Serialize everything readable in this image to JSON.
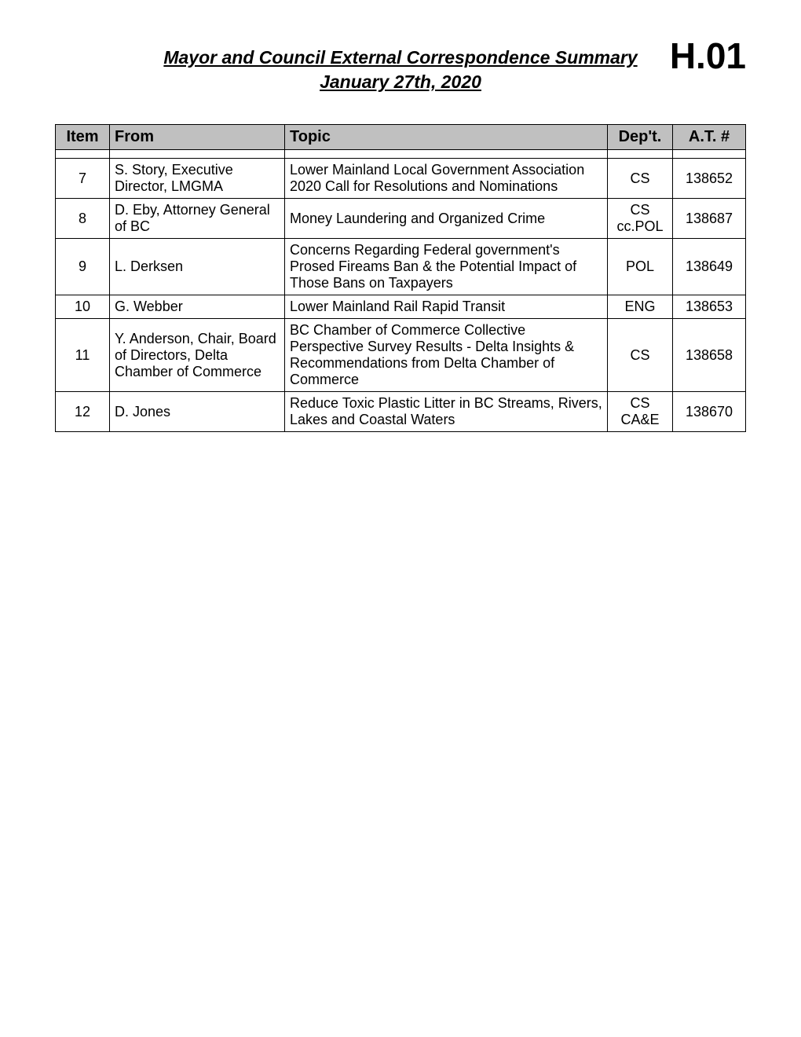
{
  "header": {
    "title": "Mayor and Council External Correspondence Summary",
    "date": "January 27th, 2020",
    "doc_code": "H.01"
  },
  "table": {
    "columns": [
      "Item",
      "From",
      "Topic",
      "Dep't.",
      "A.T. #"
    ],
    "rows": [
      {
        "item": "7",
        "from": "S. Story, Executive Director, LMGMA",
        "topic": "Lower Mainland Local Government Association 2020 Call for Resolutions and Nominations",
        "dept": "CS",
        "at": "138652"
      },
      {
        "item": "8",
        "from": "D. Eby, Attorney General of BC",
        "topic": "Money Laundering and Organized Crime",
        "dept": "CS cc.POL",
        "at": "138687"
      },
      {
        "item": "9",
        "from": "L. Derksen",
        "topic": "Concerns Regarding Federal government's Prosed Fireams Ban & the Potential Impact of Those Bans on Taxpayers",
        "dept": "POL",
        "at": "138649"
      },
      {
        "item": "10",
        "from": "G. Webber",
        "topic": "Lower Mainland Rail Rapid Transit",
        "dept": "ENG",
        "at": "138653"
      },
      {
        "item": "11",
        "from": "Y. Anderson, Chair, Board of Directors, Delta Chamber of Commerce",
        "topic": "BC Chamber of Commerce Collective Perspective Survey Results - Delta Insights & Recommendations from Delta Chamber of Commerce",
        "dept": "CS",
        "at": "138658"
      },
      {
        "item": "12",
        "from": "D. Jones",
        "topic": "Reduce Toxic Plastic Litter in BC Streams, Rivers, Lakes and Coastal Waters",
        "dept": "CS CA&E",
        "at": "138670"
      }
    ]
  },
  "style": {
    "background_color": "#ffffff",
    "header_bg": "#c0c0c0",
    "border_color": "#000000",
    "text_color": "#000000",
    "title_fontsize": 23,
    "doc_code_fontsize": 46,
    "header_fontsize": 20,
    "cell_fontsize": 18,
    "col_widths": {
      "item": 56,
      "from": 210,
      "dept": 70,
      "at": 80
    }
  }
}
